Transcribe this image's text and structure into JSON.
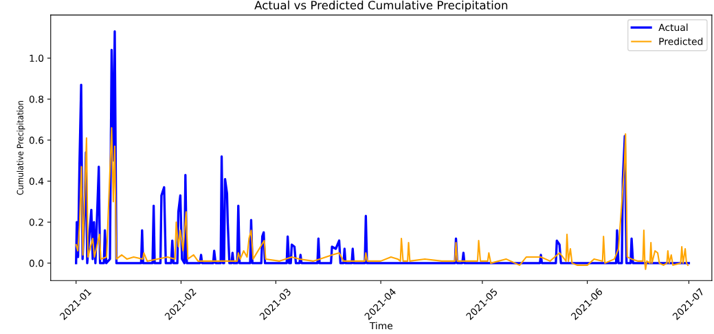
{
  "chart_data": {
    "type": "line",
    "title": "Actual vs Predicted Cumulative Precipitation",
    "xlabel": "Time",
    "ylabel": "Cumulative Precipitation",
    "xlim": [
      "2020-12-24T12:00",
      "2021-07-07T19:00"
    ],
    "ylim": [
      -0.085,
      1.21
    ],
    "xticks": [
      {
        "value": "2021-01-01",
        "label": "2021-01"
      },
      {
        "value": "2021-02-01",
        "label": "2021-02"
      },
      {
        "value": "2021-03-01",
        "label": "2021-03"
      },
      {
        "value": "2021-04-01",
        "label": "2021-04"
      },
      {
        "value": "2021-05-01",
        "label": "2021-05"
      },
      {
        "value": "2021-06-01",
        "label": "2021-06"
      },
      {
        "value": "2021-07-01",
        "label": "2021-07"
      }
    ],
    "yticks": [
      {
        "value": 0,
        "label": "0.0"
      },
      {
        "value": 0.2,
        "label": "0.2"
      },
      {
        "value": 0.4,
        "label": "0.4"
      },
      {
        "value": 0.6,
        "label": "0.6"
      },
      {
        "value": 0.8,
        "label": "0.8"
      },
      {
        "value": 1.0,
        "label": "1.0"
      }
    ],
    "grid": false,
    "legend": "top right",
    "marker": "none",
    "line_style": "solid",
    "series": [
      {
        "name": "Actual",
        "color": "#0000ff",
        "x": [
          "2021-01-01T00:00",
          "2021-01-01T05:00",
          "2021-01-01T14:00",
          "2021-01-02T00:00",
          "2021-01-02T12:00",
          "2021-01-02T22:00",
          "2021-01-03T12:00",
          "2021-01-03T22:00",
          "2021-01-04T07:00",
          "2021-01-05T12:00",
          "2021-01-05T22:00",
          "2021-01-06T07:00",
          "2021-01-06T17:00",
          "2021-01-07T17:00",
          "2021-01-08T02:00",
          "2021-01-09T05:00",
          "2021-01-09T12:00",
          "2021-01-09T22:00",
          "2021-01-11T00:00",
          "2021-01-11T12:00",
          "2021-01-12T00:00",
          "2021-01-12T10:00",
          "2021-01-12T22:00",
          "2021-01-20T05:00",
          "2021-01-20T12:00",
          "2021-01-20T19:00",
          "2021-01-23T14:00",
          "2021-01-23T22:00",
          "2021-01-24T05:00",
          "2021-01-25T22:00",
          "2021-01-26T05:00",
          "2021-01-27T00:00",
          "2021-01-27T12:00",
          "2021-01-29T02:00",
          "2021-01-29T10:00",
          "2021-01-29T19:00",
          "2021-01-30T22:00",
          "2021-01-31T05:00",
          "2021-01-31T19:00",
          "2021-02-01T07:00",
          "2021-02-02T00:00",
          "2021-02-02T07:00",
          "2021-02-02T17:00",
          "2021-02-06T14:00",
          "2021-02-06T22:00",
          "2021-02-07T05:00",
          "2021-02-10T12:00",
          "2021-02-10T19:00",
          "2021-02-11T05:00",
          "2021-02-12T17:00",
          "2021-02-13T00:00",
          "2021-02-13T10:00",
          "2021-02-13T17:00",
          "2021-02-14T00:00",
          "2021-02-14T14:00",
          "2021-02-14T19:00",
          "2021-02-15T07:00",
          "2021-02-15T22:00",
          "2021-02-16T05:00",
          "2021-02-16T12:00",
          "2021-02-17T14:00",
          "2021-02-17T22:00",
          "2021-02-18T07:00",
          "2021-02-21T10:00",
          "2021-02-21T17:00",
          "2021-02-22T02:00",
          "2021-02-24T17:00",
          "2021-02-25T00:00",
          "2021-02-25T10:00",
          "2021-02-25T19:00",
          "2021-03-04T05:00",
          "2021-03-04T12:00",
          "2021-03-04T22:00",
          "2021-03-05T10:00",
          "2021-03-05T17:00",
          "2021-03-06T12:00",
          "2021-03-06T22:00",
          "2021-03-08T00:00",
          "2021-03-08T07:00",
          "2021-03-08T14:00",
          "2021-03-13T07:00",
          "2021-03-13T14:00",
          "2021-03-13T22:00",
          "2021-03-17T07:00",
          "2021-03-17T14:00",
          "2021-03-18T17:00",
          "2021-03-19T17:00",
          "2021-03-20T02:00",
          "2021-03-21T00:00",
          "2021-03-21T07:00",
          "2021-03-21T14:00",
          "2021-03-23T10:00",
          "2021-03-23T17:00",
          "2021-03-24T00:00",
          "2021-03-27T07:00",
          "2021-03-27T14:00",
          "2021-03-27T22:00",
          "2021-04-22T22:00",
          "2021-04-23T05:00",
          "2021-04-23T14:00",
          "2021-04-25T02:00",
          "2021-04-25T10:00",
          "2021-04-25T17:00",
          "2021-05-18T00:00",
          "2021-05-18T07:00",
          "2021-05-18T14:00",
          "2021-05-22T17:00",
          "2021-05-23T00:00",
          "2021-05-23T19:00",
          "2021-05-24T05:00",
          "2021-06-09T12:00",
          "2021-06-09T19:00",
          "2021-06-10T05:00",
          "2021-06-11T05:00",
          "2021-06-11T12:00",
          "2021-06-12T02:00",
          "2021-06-12T14:00",
          "2021-06-13T19:00",
          "2021-06-14T02:00",
          "2021-06-14T12:00",
          "2021-07-01T00:00"
        ],
        "values": [
          0,
          0.2,
          0.03,
          0.48,
          0.87,
          0.02,
          0.25,
          0.54,
          0,
          0.26,
          0.02,
          0.2,
          0,
          0.47,
          0,
          0,
          0.16,
          0,
          0.02,
          1.04,
          0.5,
          1.13,
          0,
          0,
          0.16,
          0,
          0,
          0.28,
          0,
          0,
          0.33,
          0.37,
          0,
          0,
          0.11,
          0,
          0,
          0.25,
          0.33,
          0.02,
          0,
          0.43,
          0,
          0,
          0.04,
          0,
          0,
          0.06,
          0,
          0,
          0.52,
          0,
          0,
          0.41,
          0.34,
          0.2,
          0,
          0,
          0.05,
          0,
          0,
          0.28,
          0,
          0,
          0.21,
          0,
          0,
          0.13,
          0.15,
          0,
          0,
          0.13,
          0,
          0,
          0.09,
          0.08,
          0,
          0,
          0.04,
          0,
          0,
          0.12,
          0,
          0,
          0.08,
          0.07,
          0.11,
          0,
          0,
          0.07,
          0,
          0,
          0.07,
          0,
          0,
          0.23,
          0,
          0,
          0.12,
          0,
          0,
          0.05,
          0,
          0,
          0.04,
          0,
          0,
          0.11,
          0.09,
          0,
          0,
          0.16,
          0,
          0,
          0.41,
          0.62,
          0,
          0,
          0.12,
          0,
          0
        ]
      },
      {
        "name": "Predicted",
        "color": "#ffa500",
        "x": [
          "2021-01-01T00:00",
          "2021-01-01T12:00",
          "2021-01-02T00:00",
          "2021-01-02T14:00",
          "2021-01-03T00:00",
          "2021-01-04T02:00",
          "2021-01-04T12:00",
          "2021-01-05T22:00",
          "2021-01-06T10:00",
          "2021-01-07T22:00",
          "2021-01-08T07:00",
          "2021-01-10T00:00",
          "2021-01-11T12:00",
          "2021-01-12T00:00",
          "2021-01-12T10:00",
          "2021-01-12T22:00",
          "2021-01-14T12:00",
          "2021-01-16T00:00",
          "2021-01-18T00:00",
          "2021-01-20T17:00",
          "2021-01-21T00:00",
          "2021-01-22T00:00",
          "2021-01-25T00:00",
          "2021-01-28T00:00",
          "2021-01-30T05:00",
          "2021-01-30T14:00",
          "2021-01-31T05:00",
          "2021-01-31T19:00",
          "2021-02-01T14:00",
          "2021-02-02T12:00",
          "2021-02-03T00:00",
          "2021-02-04T17:00",
          "2021-02-06T00:00",
          "2021-02-10T00:00",
          "2021-02-15T00:00",
          "2021-02-17T14:00",
          "2021-02-17T22:00",
          "2021-02-18T12:00",
          "2021-02-19T12:00",
          "2021-02-20T12:00",
          "2021-02-21T02:00",
          "2021-02-21T17:00",
          "2021-02-22T07:00",
          "2021-02-25T14:00",
          "2021-02-26T00:00",
          "2021-03-02T00:00",
          "2021-03-05T17:00",
          "2021-03-08T00:00",
          "2021-03-12T00:00",
          "2021-03-14T00:00",
          "2021-03-17T14:00",
          "2021-03-19T17:00",
          "2021-03-21T00:00",
          "2021-03-27T07:00",
          "2021-03-27T14:00",
          "2021-03-28T00:00",
          "2021-04-01T00:00",
          "2021-04-04T00:00",
          "2021-04-06T00:00",
          "2021-04-06T19:00",
          "2021-04-07T02:00",
          "2021-04-07T14:00",
          "2021-04-08T22:00",
          "2021-04-09T05:00",
          "2021-04-09T14:00",
          "2021-04-14T00:00",
          "2021-04-19T00:00",
          "2021-04-22T22:00",
          "2021-04-23T05:00",
          "2021-04-23T14:00",
          "2021-04-29T14:00",
          "2021-04-29T22:00",
          "2021-04-30T10:00",
          "2021-05-02T14:00",
          "2021-05-02T22:00",
          "2021-05-03T12:00",
          "2021-05-08T00:00",
          "2021-05-12T00:00",
          "2021-05-14T00:00",
          "2021-05-18T07:00",
          "2021-05-21T00:00",
          "2021-05-23T19:00",
          "2021-05-25T17:00",
          "2021-05-26T00:00",
          "2021-05-26T10:00",
          "2021-05-27T00:00",
          "2021-05-27T12:00",
          "2021-05-29T00:00",
          "2021-06-01T00:00",
          "2021-06-03T00:00",
          "2021-06-05T12:00",
          "2021-06-05T19:00",
          "2021-06-06T05:00",
          "2021-06-09T00:00",
          "2021-06-10T05:00",
          "2021-06-11T22:00",
          "2021-06-12T07:00",
          "2021-06-12T19:00",
          "2021-06-14T02:00",
          "2021-06-16T00:00",
          "2021-06-17T10:00",
          "2021-06-17T17:00",
          "2021-06-18T00:00",
          "2021-06-18T05:00",
          "2021-06-18T14:00",
          "2021-06-19T12:00",
          "2021-06-19T19:00",
          "2021-06-20T02:00",
          "2021-06-21T00:00",
          "2021-06-21T19:00",
          "2021-06-22T07:00",
          "2021-06-23T12:00",
          "2021-06-24T12:00",
          "2021-06-24T19:00",
          "2021-06-25T05:00",
          "2021-06-25T19:00",
          "2021-06-26T07:00",
          "2021-06-28T14:00",
          "2021-06-28T22:00",
          "2021-06-29T07:00",
          "2021-06-29T22:00",
          "2021-06-30T07:00",
          "2021-06-30T17:00"
        ],
        "values": [
          0.09,
          0.06,
          0.18,
          0.47,
          0.04,
          0.61,
          0.03,
          0.12,
          0.03,
          0.14,
          0.02,
          0.03,
          0.66,
          0.3,
          0.57,
          0.02,
          0.04,
          0.02,
          0.03,
          0.02,
          0.05,
          0.01,
          0.02,
          0.03,
          0.02,
          0.2,
          0.08,
          0.16,
          0.06,
          0.25,
          0.02,
          0.04,
          0.01,
          0.01,
          0.01,
          0.01,
          0.05,
          0.02,
          0.06,
          0.03,
          0.12,
          0.16,
          0.02,
          0.11,
          0.02,
          0.01,
          0.03,
          0.02,
          0.01,
          0.02,
          0.04,
          0.05,
          0.01,
          0.01,
          0.05,
          0.01,
          0.01,
          0.03,
          0.02,
          0.01,
          0.12,
          0.01,
          0.01,
          0.1,
          0.01,
          0.02,
          0.01,
          0.01,
          0.1,
          0.01,
          0.01,
          0.11,
          0.01,
          0.01,
          0.05,
          0,
          0.02,
          -0.01,
          0.03,
          0.03,
          0.01,
          0.05,
          0.01,
          0.14,
          0.01,
          0.07,
          0,
          -0.01,
          -0.01,
          0.02,
          0.01,
          0.13,
          0,
          0.02,
          0.07,
          0.46,
          0.63,
          0.03,
          0.02,
          0.01,
          0.01,
          0.16,
          0,
          -0.03,
          0.01,
          0,
          0.1,
          0,
          0.06,
          0.05,
          0,
          -0.01,
          0,
          0.06,
          0,
          0.04,
          -0.01,
          0,
          0.08,
          0,
          0.07,
          0,
          -0.01
        ]
      }
    ]
  }
}
